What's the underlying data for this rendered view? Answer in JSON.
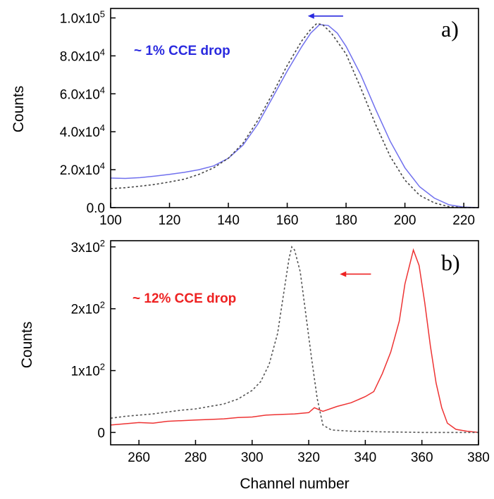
{
  "chart_data": [
    {
      "type": "line",
      "panel_label": "a)",
      "xlabel": "",
      "ylabel": "Counts",
      "xlim": [
        100,
        225
      ],
      "ylim": [
        0,
        105000
      ],
      "x_ticks": [
        100,
        120,
        140,
        160,
        180,
        200,
        220
      ],
      "x_tick_labels": [
        "100",
        "120",
        "140",
        "160",
        "180",
        "200",
        "220"
      ],
      "y_ticks": [
        0,
        20000,
        40000,
        60000,
        80000,
        100000
      ],
      "y_tick_labels": [
        {
          "mant": "0.0",
          "exp": ""
        },
        {
          "mant": "2.0x10",
          "exp": "4"
        },
        {
          "mant": "4.0x10",
          "exp": "4"
        },
        {
          "mant": "6.0x10",
          "exp": "4"
        },
        {
          "mant": "8.0x10",
          "exp": "4"
        },
        {
          "mant": "1.0x10",
          "exp": "5"
        }
      ],
      "annotation": "~ 1% CCE drop",
      "arrow": {
        "from_x": 179,
        "to_x": 167,
        "y": 101000,
        "color": "#2a2adf"
      },
      "grid": false,
      "series": [
        {
          "style": "solid",
          "color": "#7070ee",
          "points": [
            [
              100,
              15600
            ],
            [
              105,
              15400
            ],
            [
              110,
              15800
            ],
            [
              115,
              16600
            ],
            [
              120,
              17500
            ],
            [
              125,
              18600
            ],
            [
              130,
              20000
            ],
            [
              135,
              22000
            ],
            [
              140,
              26000
            ],
            [
              145,
              33000
            ],
            [
              150,
              44000
            ],
            [
              155,
              58000
            ],
            [
              160,
              72000
            ],
            [
              165,
              85000
            ],
            [
              168,
              92000
            ],
            [
              171,
              96500
            ],
            [
              174,
              96000
            ],
            [
              177,
              92000
            ],
            [
              180,
              85000
            ],
            [
              185,
              70000
            ],
            [
              190,
              52000
            ],
            [
              195,
              35000
            ],
            [
              200,
              21000
            ],
            [
              205,
              11000
            ],
            [
              210,
              5000
            ],
            [
              215,
              1500
            ],
            [
              220,
              300
            ],
            [
              225,
              0
            ]
          ]
        },
        {
          "style": "dotted",
          "color": "#444444",
          "points": [
            [
              100,
              10000
            ],
            [
              105,
              10500
            ],
            [
              110,
              11300
            ],
            [
              115,
              12200
            ],
            [
              120,
              13500
            ],
            [
              125,
              15000
            ],
            [
              130,
              17500
            ],
            [
              135,
              21000
            ],
            [
              140,
              26000
            ],
            [
              145,
              34000
            ],
            [
              150,
              46000
            ],
            [
              155,
              60000
            ],
            [
              160,
              75000
            ],
            [
              165,
              88000
            ],
            [
              168,
              94000
            ],
            [
              170,
              97000
            ],
            [
              172,
              96500
            ],
            [
              175,
              92000
            ],
            [
              180,
              81000
            ],
            [
              185,
              63000
            ],
            [
              190,
              44000
            ],
            [
              195,
              27000
            ],
            [
              200,
              14500
            ],
            [
              205,
              6500
            ],
            [
              210,
              2500
            ],
            [
              215,
              500
            ],
            [
              220,
              0
            ],
            [
              225,
              0
            ]
          ]
        }
      ]
    },
    {
      "type": "line",
      "panel_label": "b)",
      "xlabel": "Channel number",
      "ylabel": "Counts",
      "xlim": [
        250,
        380
      ],
      "ylim": [
        -20,
        310
      ],
      "x_ticks": [
        260,
        280,
        300,
        320,
        340,
        360,
        380
      ],
      "x_tick_labels": [
        "260",
        "280",
        "300",
        "320",
        "340",
        "360",
        "380"
      ],
      "y_ticks": [
        0,
        100,
        200,
        300
      ],
      "y_tick_labels": [
        {
          "mant": "0",
          "exp": ""
        },
        {
          "mant": "1x10",
          "exp": "2"
        },
        {
          "mant": "2x10",
          "exp": "2"
        },
        {
          "mant": "3x10",
          "exp": "2"
        }
      ],
      "annotation": "~ 12% CCE drop",
      "arrow": {
        "from_x": 342,
        "to_x": 331,
        "y": 256,
        "color": "#ee2222"
      },
      "grid": false,
      "series": [
        {
          "style": "solid",
          "color": "#ee3333",
          "points": [
            [
              250,
              12
            ],
            [
              255,
              14
            ],
            [
              260,
              16
            ],
            [
              265,
              15
            ],
            [
              270,
              18
            ],
            [
              275,
              19
            ],
            [
              280,
              20
            ],
            [
              285,
              21
            ],
            [
              290,
              22
            ],
            [
              295,
              24
            ],
            [
              300,
              25
            ],
            [
              305,
              28
            ],
            [
              310,
              29
            ],
            [
              315,
              30
            ],
            [
              320,
              32
            ],
            [
              322,
              40
            ],
            [
              325,
              34
            ],
            [
              330,
              42
            ],
            [
              335,
              48
            ],
            [
              340,
              58
            ],
            [
              343,
              66
            ],
            [
              346,
              95
            ],
            [
              349,
              130
            ],
            [
              352,
              180
            ],
            [
              354,
              240
            ],
            [
              357,
              295
            ],
            [
              359,
              270
            ],
            [
              361,
              210
            ],
            [
              363,
              140
            ],
            [
              365,
              80
            ],
            [
              367,
              40
            ],
            [
              369,
              15
            ],
            [
              372,
              5
            ],
            [
              376,
              2
            ],
            [
              380,
              0
            ]
          ]
        },
        {
          "style": "dotted",
          "color": "#555555",
          "points": [
            [
              250,
              23
            ],
            [
              255,
              26
            ],
            [
              260,
              28
            ],
            [
              265,
              30
            ],
            [
              270,
              33
            ],
            [
              275,
              36
            ],
            [
              280,
              38
            ],
            [
              285,
              42
            ],
            [
              290,
              46
            ],
            [
              295,
              54
            ],
            [
              300,
              68
            ],
            [
              303,
              82
            ],
            [
              306,
              110
            ],
            [
              309,
              160
            ],
            [
              311,
              220
            ],
            [
              313,
              280
            ],
            [
              314,
              300
            ],
            [
              315,
              295
            ],
            [
              317,
              260
            ],
            [
              319,
              190
            ],
            [
              321,
              120
            ],
            [
              323,
              55
            ],
            [
              325,
              12
            ],
            [
              328,
              4
            ],
            [
              335,
              2
            ],
            [
              345,
              1
            ],
            [
              360,
              0
            ],
            [
              380,
              0
            ]
          ]
        }
      ]
    }
  ]
}
